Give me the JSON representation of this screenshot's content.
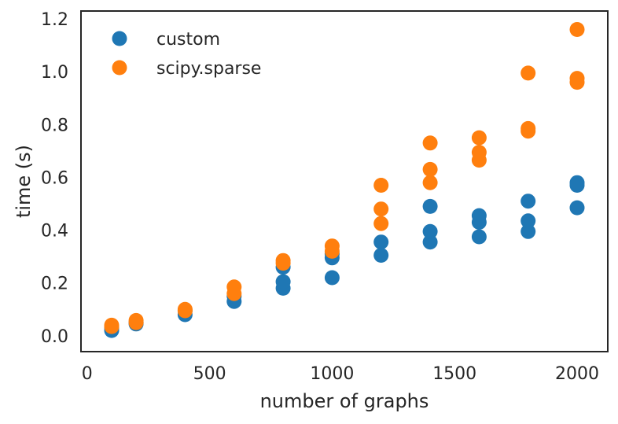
{
  "chart_data": {
    "type": "scatter",
    "title": "",
    "xlabel": "number of graphs",
    "ylabel": "time (s)",
    "xlim": [
      -25,
      2125
    ],
    "ylim": [
      -0.06,
      1.23
    ],
    "xticks": [
      0,
      500,
      1000,
      1500,
      2000
    ],
    "yticks": [
      0.0,
      0.2,
      0.4,
      0.6,
      0.8,
      1.0,
      1.2
    ],
    "xtick_labels": [
      "0",
      "500",
      "1000",
      "1500",
      "2000"
    ],
    "ytick_labels": [
      "0.0",
      "0.2",
      "0.4",
      "0.6",
      "0.8",
      "1.0",
      "1.2"
    ],
    "grid": false,
    "legend": {
      "position": "top-left"
    },
    "series": [
      {
        "name": "custom",
        "color": "#1f77b4",
        "points": [
          [
            100,
            0.02
          ],
          [
            100,
            0.03
          ],
          [
            200,
            0.045
          ],
          [
            200,
            0.05
          ],
          [
            400,
            0.08
          ],
          [
            400,
            0.095
          ],
          [
            600,
            0.13
          ],
          [
            600,
            0.15
          ],
          [
            800,
            0.18
          ],
          [
            800,
            0.205
          ],
          [
            800,
            0.26
          ],
          [
            1000,
            0.22
          ],
          [
            1000,
            0.295
          ],
          [
            1000,
            0.31
          ],
          [
            1200,
            0.305
          ],
          [
            1200,
            0.355
          ],
          [
            1400,
            0.355
          ],
          [
            1400,
            0.395
          ],
          [
            1400,
            0.49
          ],
          [
            1600,
            0.375
          ],
          [
            1600,
            0.43
          ],
          [
            1600,
            0.455
          ],
          [
            1800,
            0.395
          ],
          [
            1800,
            0.435
          ],
          [
            1800,
            0.51
          ],
          [
            2000,
            0.485
          ],
          [
            2000,
            0.57
          ],
          [
            2000,
            0.58
          ]
        ]
      },
      {
        "name": "scipy.sparse",
        "color": "#ff7f0e",
        "points": [
          [
            100,
            0.035
          ],
          [
            100,
            0.04
          ],
          [
            200,
            0.05
          ],
          [
            200,
            0.058
          ],
          [
            400,
            0.095
          ],
          [
            400,
            0.1
          ],
          [
            600,
            0.16
          ],
          [
            600,
            0.185
          ],
          [
            800,
            0.275
          ],
          [
            800,
            0.285
          ],
          [
            1000,
            0.32
          ],
          [
            1000,
            0.34
          ],
          [
            1200,
            0.425
          ],
          [
            1200,
            0.48
          ],
          [
            1200,
            0.57
          ],
          [
            1400,
            0.58
          ],
          [
            1400,
            0.63
          ],
          [
            1400,
            0.73
          ],
          [
            1600,
            0.665
          ],
          [
            1600,
            0.695
          ],
          [
            1600,
            0.75
          ],
          [
            1800,
            0.775
          ],
          [
            1800,
            0.785
          ],
          [
            1800,
            0.995
          ],
          [
            2000,
            0.96
          ],
          [
            2000,
            0.975
          ],
          [
            2000,
            1.16
          ]
        ]
      }
    ]
  }
}
